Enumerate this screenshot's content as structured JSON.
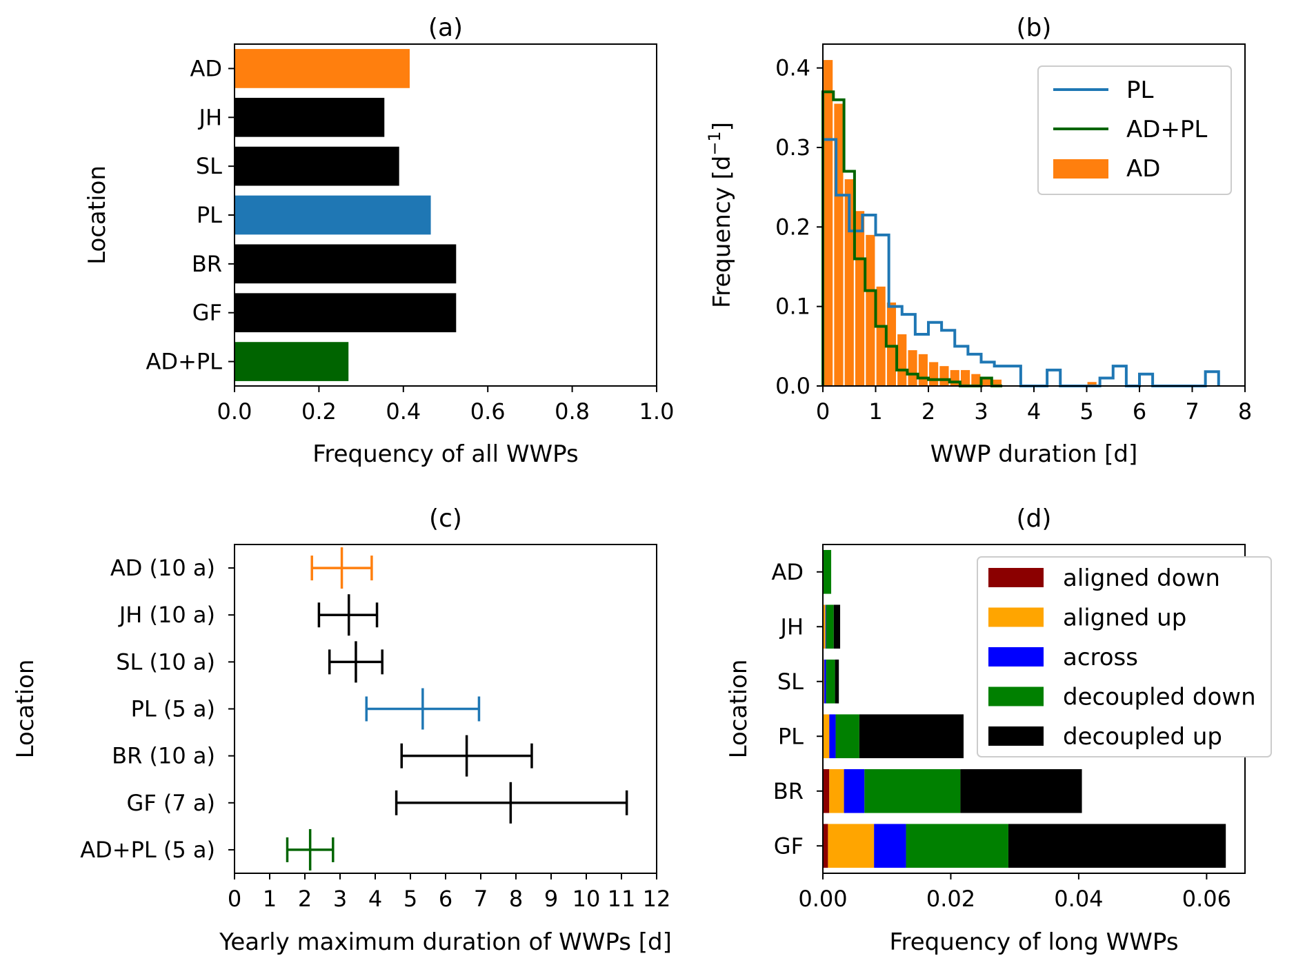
{
  "colors": {
    "orange": "#ff7f0e",
    "blue": "#1f77b4",
    "green": "#006400",
    "black": "#000000",
    "dark_red": "#8b0000",
    "gold": "#ffa500",
    "pure_blue": "#0000ff",
    "mid_green": "#008000"
  },
  "chart_data": [
    {
      "panel": "a",
      "type": "bar",
      "orientation": "horizontal",
      "title": "(a)",
      "xlabel": "Frequency of all WWPs",
      "ylabel": "Location",
      "categories": [
        "AD",
        "JH",
        "SL",
        "PL",
        "BR",
        "GF",
        "AD+PL"
      ],
      "values": [
        0.415,
        0.355,
        0.39,
        0.465,
        0.525,
        0.525,
        0.27
      ],
      "bar_colors": [
        "#ff7f0e",
        "#000000",
        "#000000",
        "#1f77b4",
        "#000000",
        "#000000",
        "#006400"
      ],
      "xlim": [
        0,
        1.0
      ],
      "xticks": [
        "0.0",
        "0.2",
        "0.4",
        "0.6",
        "0.8",
        "1.0"
      ],
      "grid": false
    },
    {
      "panel": "b",
      "type": "histogram",
      "title": "(b)",
      "xlabel": "WWP duration [d]",
      "ylabel": "Frequency [d⁻¹]",
      "ylabel_main": "Frequency [d",
      "ylabel_sup": "−1",
      "ylabel_end": "]",
      "xlim": [
        0,
        8
      ],
      "ylim": [
        0,
        0.43
      ],
      "xticks": [
        "0",
        "1",
        "2",
        "3",
        "4",
        "5",
        "6",
        "7",
        "8"
      ],
      "yticks": [
        "0.0",
        "0.1",
        "0.2",
        "0.3",
        "0.4"
      ],
      "legend": {
        "position": "upper right",
        "entries": [
          "PL",
          "AD+PL",
          "AD"
        ]
      },
      "series": [
        {
          "name": "AD",
          "style": "bar",
          "color": "#ff7f0e",
          "bin_width": 0.2,
          "bin_starts": [
            0.0,
            0.2,
            0.4,
            0.6,
            0.8,
            1.0,
            1.2,
            1.4,
            1.6,
            1.8,
            2.0,
            2.2,
            2.4,
            2.6,
            2.8,
            3.0,
            3.2,
            5.0
          ],
          "values": [
            0.41,
            0.355,
            0.26,
            0.22,
            0.19,
            0.125,
            0.105,
            0.065,
            0.045,
            0.04,
            0.03,
            0.025,
            0.02,
            0.02,
            0.015,
            0.01,
            0.008,
            0.005
          ]
        },
        {
          "name": "PL",
          "style": "step",
          "color": "#1f77b4",
          "bin_width": 0.25,
          "bin_starts": [
            0.0,
            0.25,
            0.5,
            0.75,
            1.0,
            1.25,
            1.5,
            1.75,
            2.0,
            2.25,
            2.5,
            2.75,
            3.0,
            3.25,
            3.5,
            3.75,
            4.0,
            4.25,
            4.5,
            4.75,
            5.0,
            5.25,
            5.5,
            5.75,
            6.0,
            6.25,
            6.5,
            6.75,
            7.0,
            7.25
          ],
          "values": [
            0.31,
            0.24,
            0.195,
            0.215,
            0.19,
            0.1,
            0.09,
            0.065,
            0.08,
            0.07,
            0.05,
            0.04,
            0.03,
            0.025,
            0.025,
            0.0,
            0.0,
            0.02,
            0.0,
            0.0,
            0.0,
            0.01,
            0.025,
            0.0,
            0.015,
            0.0,
            0.0,
            0.0,
            0.0,
            0.018
          ]
        },
        {
          "name": "AD+PL",
          "style": "step",
          "color": "#006400",
          "bin_width": 0.2,
          "bin_starts": [
            0.0,
            0.2,
            0.4,
            0.6,
            0.8,
            1.0,
            1.2,
            1.4,
            1.6,
            1.8,
            2.0,
            2.2,
            2.4,
            2.6,
            2.8,
            3.0,
            3.2
          ],
          "values": [
            0.37,
            0.36,
            0.27,
            0.16,
            0.12,
            0.075,
            0.05,
            0.02,
            0.015,
            0.01,
            0.008,
            0.008,
            0.005,
            0.0,
            0.0,
            0.01,
            0.0
          ]
        }
      ]
    },
    {
      "panel": "c",
      "type": "errorbar",
      "title": "(c)",
      "xlabel": "Yearly maximum duration of WWPs [d]",
      "ylabel": "Location",
      "categories": [
        "AD (10 a)",
        "JH (10 a)",
        "SL (10 a)",
        "PL (5 a)",
        "BR (10 a)",
        "GF (7 a)",
        "AD+PL (5 a)"
      ],
      "center": [
        3.05,
        3.25,
        3.45,
        5.35,
        6.6,
        7.85,
        2.15
      ],
      "low": [
        2.2,
        2.4,
        2.7,
        3.75,
        4.75,
        4.6,
        1.5
      ],
      "high": [
        3.9,
        4.05,
        4.2,
        6.95,
        8.45,
        11.15,
        2.8
      ],
      "point_colors": [
        "#ff7f0e",
        "#000000",
        "#000000",
        "#1f77b4",
        "#000000",
        "#000000",
        "#006400"
      ],
      "xlim": [
        0,
        12
      ],
      "xticks": [
        "0",
        "1",
        "2",
        "3",
        "4",
        "5",
        "6",
        "7",
        "8",
        "9",
        "10",
        "11",
        "12"
      ],
      "grid": false
    },
    {
      "panel": "d",
      "type": "stacked_bar",
      "orientation": "horizontal",
      "title": "(d)",
      "xlabel": "Frequency of long WWPs",
      "ylabel": "Location",
      "categories": [
        "AD",
        "JH",
        "SL",
        "PL",
        "BR",
        "GF"
      ],
      "xlim": [
        0,
        0.066
      ],
      "xticks": [
        "0.00",
        "0.02",
        "0.04",
        "0.06"
      ],
      "legend": {
        "position": "upper right",
        "entries": [
          "aligned down",
          "aligned up",
          "across",
          "decoupled down",
          "decoupled up"
        ]
      },
      "series": [
        {
          "name": "aligned down",
          "color": "#8b0000",
          "values": [
            0.0,
            0.0,
            0.0,
            0.0,
            0.001,
            0.0008
          ]
        },
        {
          "name": "aligned up",
          "color": "#ffa500",
          "values": [
            0.0,
            0.0004,
            0.0002,
            0.001,
            0.0023,
            0.0072
          ]
        },
        {
          "name": "across",
          "color": "#0000ff",
          "values": [
            0.0,
            0.0001,
            0.0003,
            0.001,
            0.0032,
            0.005
          ]
        },
        {
          "name": "decoupled down",
          "color": "#008000",
          "values": [
            0.0013,
            0.0012,
            0.0014,
            0.0037,
            0.015,
            0.016
          ]
        },
        {
          "name": "decoupled up",
          "color": "#000000",
          "values": [
            0.0,
            0.001,
            0.0006,
            0.0163,
            0.019,
            0.034
          ]
        }
      ]
    }
  ]
}
